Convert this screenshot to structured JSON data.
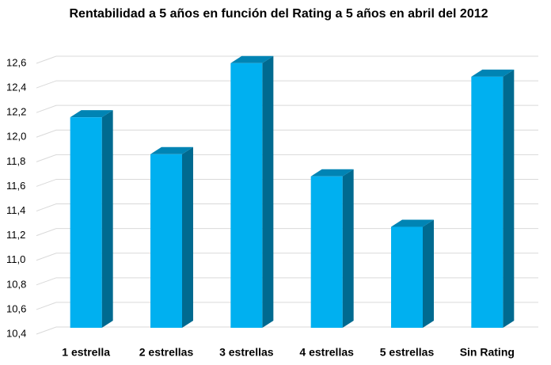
{
  "chart_data": {
    "type": "bar3d",
    "title": "Rentabilidad a 5 años en función del Rating a 5 años en abril del 2012",
    "categories": [
      "1 estrella",
      "2 estrellas",
      "3 estrellas",
      "4 estrellas",
      "5 estrellas",
      "Sin Rating"
    ],
    "values": [
      12.11,
      11.81,
      12.55,
      11.63,
      11.22,
      12.44
    ],
    "color": "#00b0f0",
    "ylim": [
      10.4,
      12.6
    ],
    "yticks": [
      {
        "value": 10.4,
        "label": "10,4"
      },
      {
        "value": 10.6,
        "label": "10,6"
      },
      {
        "value": 10.8,
        "label": "10,8"
      },
      {
        "value": 11.0,
        "label": "11,0"
      },
      {
        "value": 11.2,
        "label": "11,2"
      },
      {
        "value": 11.4,
        "label": "11,4"
      },
      {
        "value": 11.6,
        "label": "11,6"
      },
      {
        "value": 11.8,
        "label": "11,8"
      },
      {
        "value": 12.0,
        "label": "12,0"
      },
      {
        "value": 12.2,
        "label": "12,2"
      },
      {
        "value": 12.4,
        "label": "12,4"
      },
      {
        "value": 12.6,
        "label": "12,6"
      }
    ],
    "grid": true
  }
}
